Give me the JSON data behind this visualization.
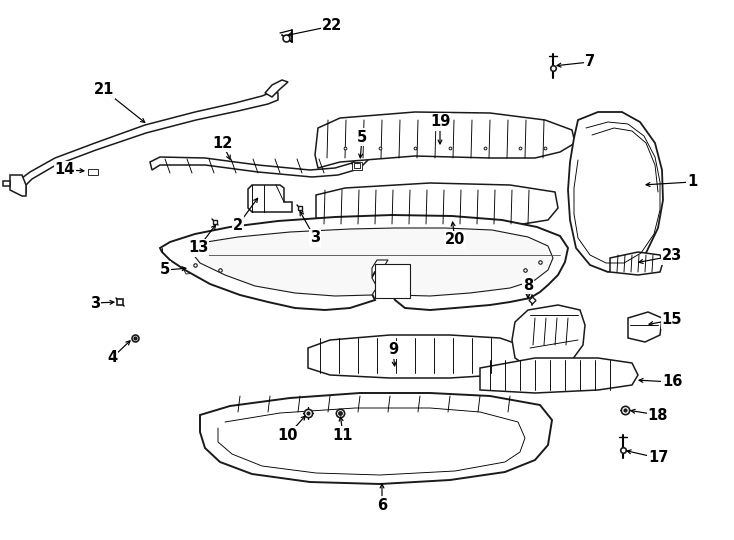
{
  "bg_color": "#ffffff",
  "line_color": "#1a1a1a",
  "text_color": "#000000",
  "label_fontsize": 10.5,
  "lw_main": 1.1,
  "lw_thin": 0.65
}
